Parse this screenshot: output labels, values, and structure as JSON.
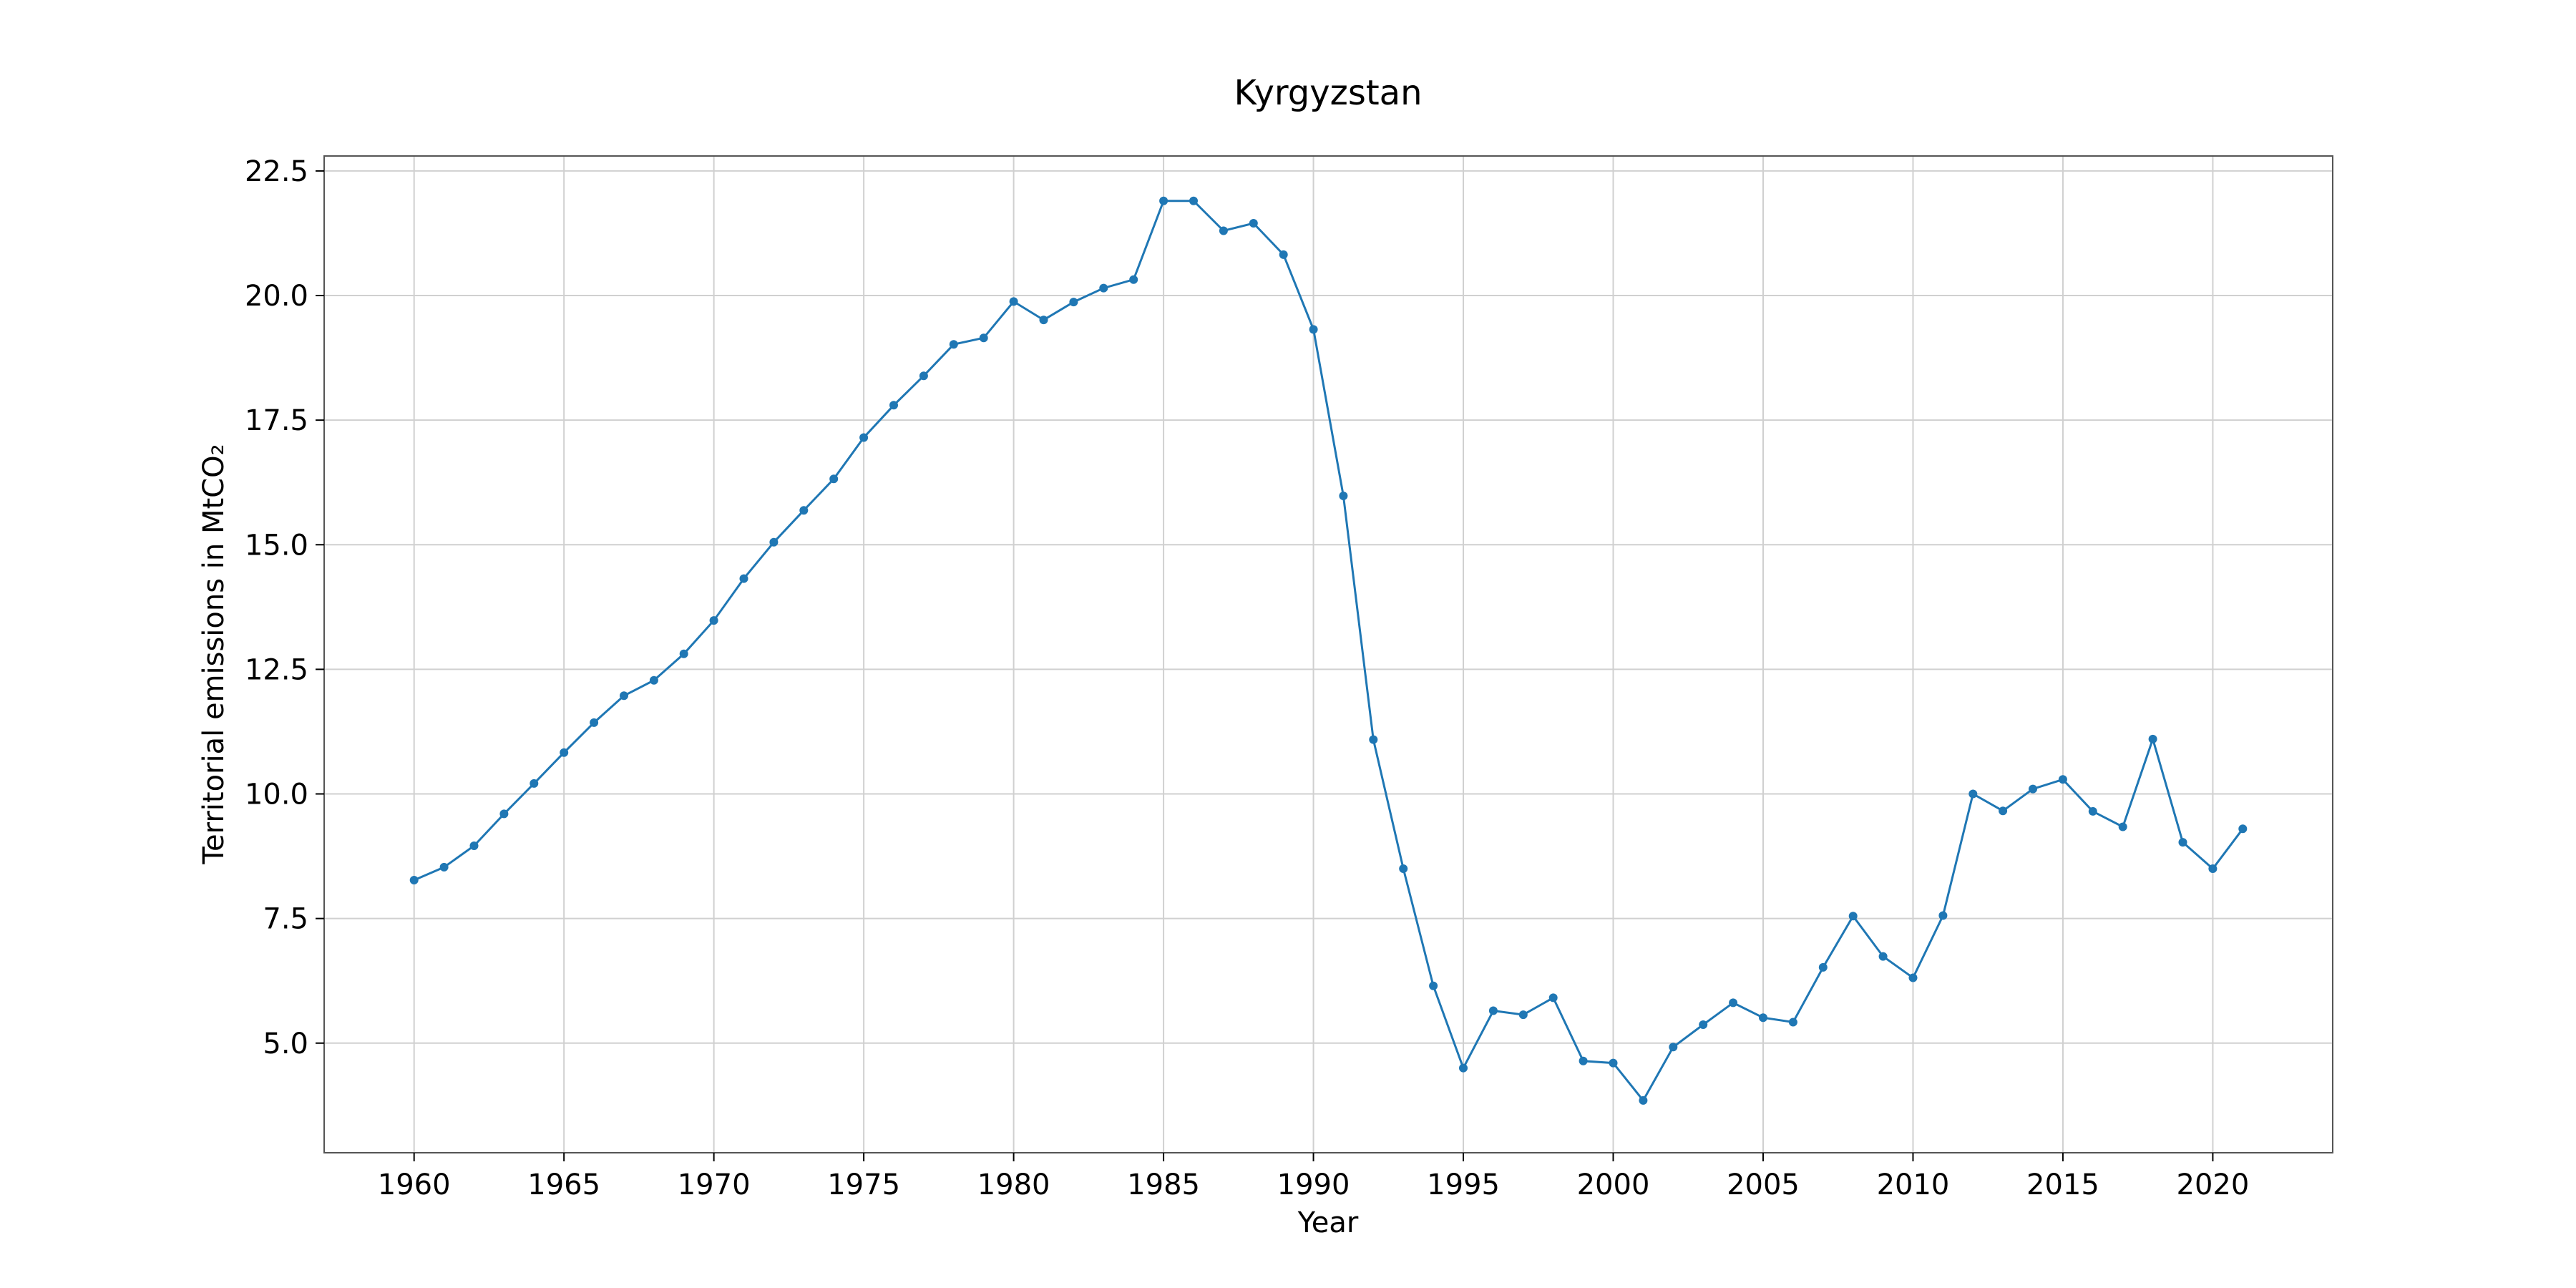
{
  "chart_data": {
    "type": "line",
    "title": "Kyrgyzstan",
    "xlabel": "Year",
    "ylabel": "Territorial emissions in MtCO₂",
    "xlim": [
      1957,
      2024
    ],
    "ylim": [
      2.8,
      22.8
    ],
    "x_ticks": [
      1960,
      1965,
      1970,
      1975,
      1980,
      1985,
      1990,
      1995,
      2000,
      2005,
      2010,
      2015,
      2020
    ],
    "y_ticks": [
      5.0,
      7.5,
      10.0,
      12.5,
      15.0,
      17.5,
      20.0,
      22.5
    ],
    "grid": true,
    "color": "#1f77b4",
    "series": [
      {
        "x": [
          1960,
          1961,
          1962,
          1963,
          1964,
          1965,
          1966,
          1967,
          1968,
          1969,
          1970,
          1971,
          1972,
          1973,
          1974,
          1975,
          1976,
          1977,
          1978,
          1979,
          1980,
          1981,
          1982,
          1983,
          1984,
          1985,
          1986,
          1987,
          1988,
          1989,
          1990,
          1991,
          1992,
          1993,
          1994,
          1995,
          1996,
          1997,
          1998,
          1999,
          2000,
          2001,
          2002,
          2003,
          2004,
          2005,
          2006,
          2007,
          2008,
          2009,
          2010,
          2011,
          2012,
          2013,
          2014,
          2015,
          2016,
          2017,
          2018,
          2019,
          2020,
          2021
        ],
        "values": [
          8.27,
          8.53,
          8.96,
          9.6,
          10.21,
          10.83,
          11.43,
          11.97,
          12.28,
          12.81,
          13.48,
          14.32,
          15.05,
          15.69,
          16.32,
          17.15,
          17.8,
          18.39,
          19.02,
          19.15,
          19.88,
          19.51,
          19.87,
          20.15,
          20.32,
          21.9,
          21.9,
          21.3,
          21.45,
          20.82,
          19.32,
          15.98,
          11.09,
          8.5,
          6.15,
          4.5,
          5.65,
          5.57,
          5.91,
          4.64,
          4.6,
          3.85,
          4.92,
          5.37,
          5.81,
          5.51,
          5.42,
          6.52,
          7.55,
          6.74,
          6.31,
          7.56,
          10.0,
          9.66,
          10.1,
          10.29,
          9.65,
          9.34,
          11.1,
          9.03,
          8.5,
          9.3
        ]
      }
    ]
  }
}
